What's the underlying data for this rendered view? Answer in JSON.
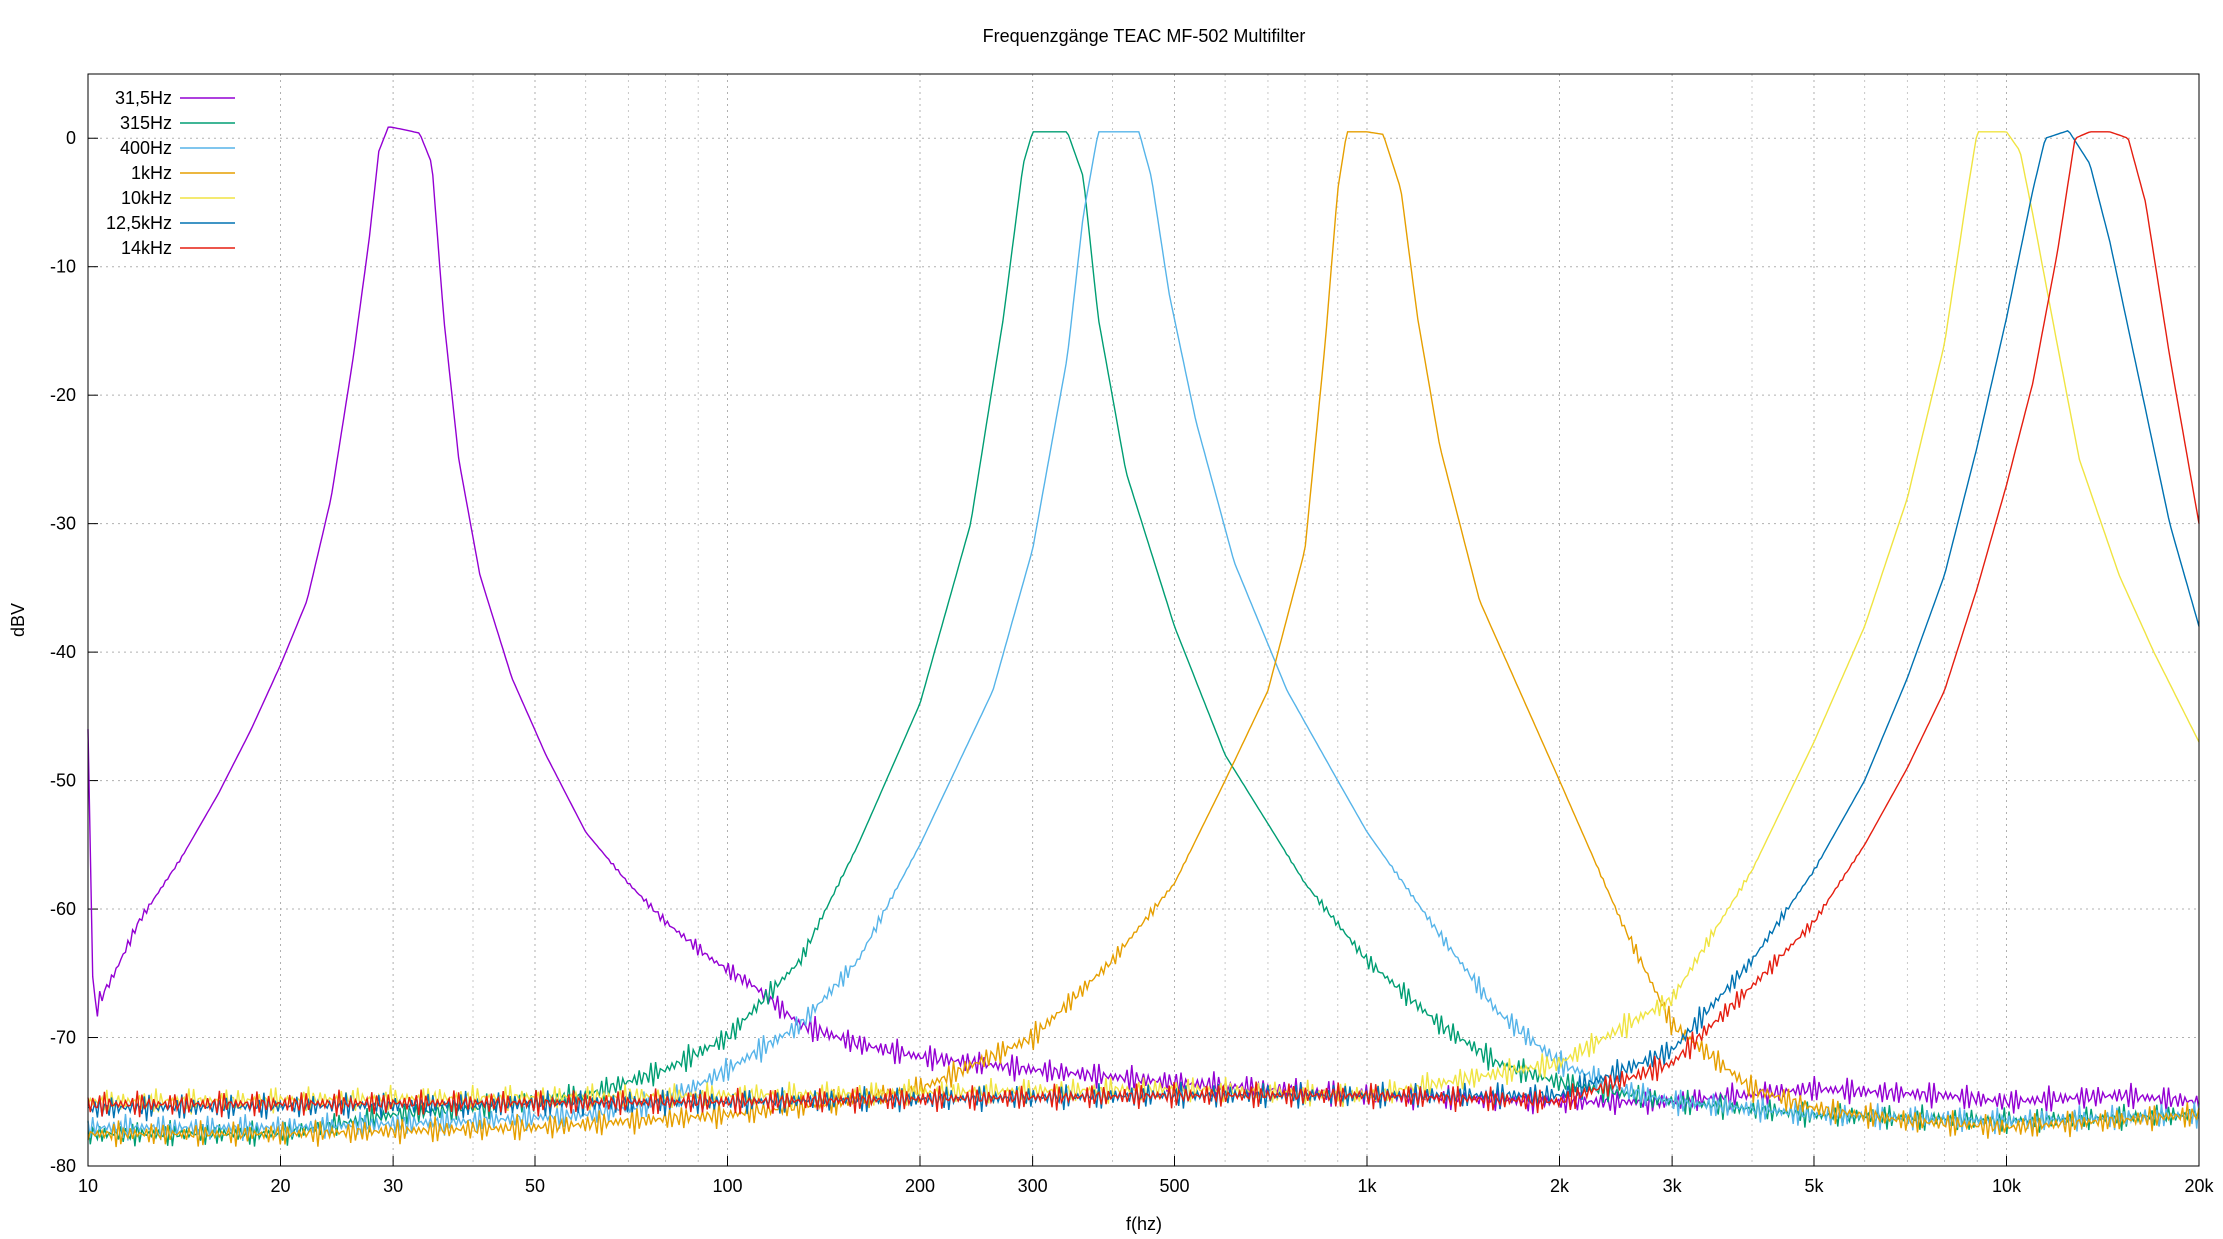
{
  "chart_data": {
    "type": "line",
    "title": "Frequenzgänge TEAC MF-502 Multifilter",
    "xlabel": "f(hz)",
    "ylabel": "dBV",
    "x_scale": "log",
    "xlim": [
      10,
      20000
    ],
    "ylim": [
      -80,
      5
    ],
    "grid": true,
    "legend_position": "top-left",
    "x_ticks": [
      {
        "value": 10,
        "label": "10"
      },
      {
        "value": 20,
        "label": "20"
      },
      {
        "value": 30,
        "label": "30"
      },
      {
        "value": 50,
        "label": "50"
      },
      {
        "value": 100,
        "label": "100"
      },
      {
        "value": 200,
        "label": "200"
      },
      {
        "value": 300,
        "label": "300"
      },
      {
        "value": 500,
        "label": "500"
      },
      {
        "value": 1000,
        "label": "1k"
      },
      {
        "value": 2000,
        "label": "2k"
      },
      {
        "value": 3000,
        "label": "3k"
      },
      {
        "value": 5000,
        "label": "5k"
      },
      {
        "value": 10000,
        "label": "10k"
      },
      {
        "value": 20000,
        "label": "20k"
      }
    ],
    "x_minor_gridlines": [
      40,
      60,
      70,
      80,
      90,
      400,
      600,
      700,
      800,
      900,
      4000,
      6000,
      7000,
      8000,
      9000
    ],
    "y_ticks": [
      {
        "value": 0,
        "label": "0"
      },
      {
        "value": -10,
        "label": "-10"
      },
      {
        "value": -20,
        "label": "-20"
      },
      {
        "value": -30,
        "label": "-30"
      },
      {
        "value": -40,
        "label": "-40"
      },
      {
        "value": -50,
        "label": "-50"
      },
      {
        "value": -60,
        "label": "-60"
      },
      {
        "value": -70,
        "label": "-70"
      },
      {
        "value": -80,
        "label": "-80"
      }
    ],
    "series": [
      {
        "name": "31,5Hz",
        "color": "#9400d3",
        "points": [
          [
            10,
            -46
          ],
          [
            10.2,
            -68
          ],
          [
            11,
            -65
          ],
          [
            12,
            -61
          ],
          [
            14,
            -56
          ],
          [
            16,
            -51
          ],
          [
            18,
            -46
          ],
          [
            20,
            -41
          ],
          [
            22,
            -36
          ],
          [
            24,
            -28
          ],
          [
            26,
            -17
          ],
          [
            27.5,
            -8
          ],
          [
            28.5,
            -1
          ],
          [
            29.5,
            0.9
          ],
          [
            31,
            0.7
          ],
          [
            33,
            0.4
          ],
          [
            34.5,
            -2
          ],
          [
            36,
            -14
          ],
          [
            38,
            -25
          ],
          [
            41,
            -34
          ],
          [
            46,
            -42
          ],
          [
            52,
            -48
          ],
          [
            60,
            -54
          ],
          [
            70,
            -58
          ],
          [
            80,
            -61
          ],
          [
            95,
            -64
          ],
          [
            110,
            -66
          ],
          [
            130,
            -69
          ],
          [
            160,
            -70.5
          ],
          [
            200,
            -71.5
          ],
          [
            300,
            -72.5
          ],
          [
            500,
            -73.5
          ],
          [
            1000,
            -74.5
          ],
          [
            2000,
            -75
          ],
          [
            3000,
            -75
          ],
          [
            5000,
            -74
          ],
          [
            8000,
            -74.5
          ],
          [
            10000,
            -75
          ],
          [
            15000,
            -74.5
          ],
          [
            20000,
            -75
          ]
        ]
      },
      {
        "name": "315Hz",
        "color": "#009e73",
        "points": [
          [
            10,
            -77.5
          ],
          [
            20,
            -77.5
          ],
          [
            30,
            -76
          ],
          [
            40,
            -75.5
          ],
          [
            60,
            -74.5
          ],
          [
            80,
            -72.5
          ],
          [
            100,
            -70
          ],
          [
            130,
            -64
          ],
          [
            160,
            -55
          ],
          [
            200,
            -44
          ],
          [
            240,
            -30
          ],
          [
            270,
            -14
          ],
          [
            290,
            -2
          ],
          [
            300,
            0.5
          ],
          [
            340,
            0.5
          ],
          [
            360,
            -3
          ],
          [
            380,
            -14
          ],
          [
            420,
            -26
          ],
          [
            500,
            -38
          ],
          [
            600,
            -48
          ],
          [
            800,
            -58
          ],
          [
            1000,
            -64
          ],
          [
            1300,
            -69
          ],
          [
            1600,
            -72
          ],
          [
            2000,
            -73.5
          ],
          [
            3000,
            -75
          ],
          [
            5000,
            -76
          ],
          [
            10000,
            -76.5
          ],
          [
            20000,
            -76
          ]
        ]
      },
      {
        "name": "400Hz",
        "color": "#56b4e9",
        "points": [
          [
            10,
            -77
          ],
          [
            20,
            -77
          ],
          [
            40,
            -76.5
          ],
          [
            60,
            -76
          ],
          [
            80,
            -75
          ],
          [
            100,
            -72.5
          ],
          [
            130,
            -69
          ],
          [
            160,
            -64
          ],
          [
            200,
            -55
          ],
          [
            260,
            -43
          ],
          [
            300,
            -32
          ],
          [
            340,
            -17
          ],
          [
            360,
            -6
          ],
          [
            380,
            0.5
          ],
          [
            440,
            0.5
          ],
          [
            460,
            -3
          ],
          [
            490,
            -12
          ],
          [
            540,
            -22
          ],
          [
            620,
            -33
          ],
          [
            750,
            -43
          ],
          [
            900,
            -50
          ],
          [
            1000,
            -54
          ],
          [
            1300,
            -62
          ],
          [
            1600,
            -68
          ],
          [
            2000,
            -72
          ],
          [
            2500,
            -74
          ],
          [
            3000,
            -75
          ],
          [
            5000,
            -76
          ],
          [
            10000,
            -76.5
          ],
          [
            20000,
            -76
          ]
        ]
      },
      {
        "name": "1kHz",
        "color": "#e69f00",
        "points": [
          [
            10,
            -77.5
          ],
          [
            20,
            -77.5
          ],
          [
            50,
            -77
          ],
          [
            100,
            -76
          ],
          [
            150,
            -75
          ],
          [
            200,
            -74
          ],
          [
            300,
            -70
          ],
          [
            400,
            -64
          ],
          [
            500,
            -58
          ],
          [
            600,
            -50
          ],
          [
            700,
            -43
          ],
          [
            800,
            -32
          ],
          [
            860,
            -16
          ],
          [
            900,
            -4
          ],
          [
            930,
            0.5
          ],
          [
            1000,
            0.5
          ],
          [
            1060,
            0.3
          ],
          [
            1130,
            -4
          ],
          [
            1200,
            -14
          ],
          [
            1300,
            -24
          ],
          [
            1500,
            -36
          ],
          [
            2000,
            -50
          ],
          [
            2500,
            -61
          ],
          [
            3000,
            -69
          ],
          [
            4000,
            -74
          ],
          [
            5000,
            -75.5
          ],
          [
            7000,
            -76.5
          ],
          [
            10000,
            -77
          ],
          [
            20000,
            -76
          ]
        ]
      },
      {
        "name": "10kHz",
        "color": "#f0e442",
        "points": [
          [
            10,
            -75
          ],
          [
            100,
            -74.5
          ],
          [
            500,
            -74
          ],
          [
            1000,
            -74.5
          ],
          [
            2000,
            -72
          ],
          [
            3000,
            -67
          ],
          [
            4000,
            -57
          ],
          [
            5000,
            -47
          ],
          [
            6000,
            -38
          ],
          [
            7000,
            -28
          ],
          [
            8000,
            -16
          ],
          [
            8700,
            -4
          ],
          [
            9000,
            0.5
          ],
          [
            10000,
            0.5
          ],
          [
            10500,
            -1
          ],
          [
            11000,
            -6
          ],
          [
            12000,
            -16
          ],
          [
            13000,
            -25
          ],
          [
            15000,
            -34
          ],
          [
            17000,
            -40
          ],
          [
            20000,
            -47
          ]
        ]
      },
      {
        "name": "12,5kHz",
        "color": "#0072b2",
        "points": [
          [
            10,
            -75.5
          ],
          [
            100,
            -75
          ],
          [
            500,
            -74.5
          ],
          [
            1000,
            -74.5
          ],
          [
            2000,
            -74.5
          ],
          [
            3000,
            -71
          ],
          [
            4000,
            -64
          ],
          [
            5000,
            -57
          ],
          [
            6000,
            -50
          ],
          [
            7000,
            -42
          ],
          [
            8000,
            -34
          ],
          [
            9000,
            -24
          ],
          [
            10000,
            -14
          ],
          [
            11000,
            -4
          ],
          [
            11500,
            0
          ],
          [
            12500,
            0.6
          ],
          [
            13500,
            -2
          ],
          [
            14500,
            -8
          ],
          [
            16000,
            -18
          ],
          [
            18000,
            -30
          ],
          [
            20000,
            -38
          ]
        ]
      },
      {
        "name": "14kHz",
        "color": "#e51e10",
        "points": [
          [
            10,
            -75.2
          ],
          [
            100,
            -75
          ],
          [
            500,
            -74.5
          ],
          [
            1000,
            -74.5
          ],
          [
            2000,
            -75
          ],
          [
            3000,
            -72
          ],
          [
            4000,
            -66
          ],
          [
            5000,
            -61
          ],
          [
            6000,
            -55
          ],
          [
            7000,
            -49
          ],
          [
            8000,
            -43
          ],
          [
            9000,
            -35
          ],
          [
            10000,
            -27
          ],
          [
            11000,
            -19
          ],
          [
            12000,
            -9
          ],
          [
            12800,
            0
          ],
          [
            13500,
            0.5
          ],
          [
            14500,
            0.5
          ],
          [
            15500,
            0
          ],
          [
            16500,
            -5
          ],
          [
            18000,
            -17
          ],
          [
            20000,
            -30
          ]
        ]
      }
    ]
  }
}
